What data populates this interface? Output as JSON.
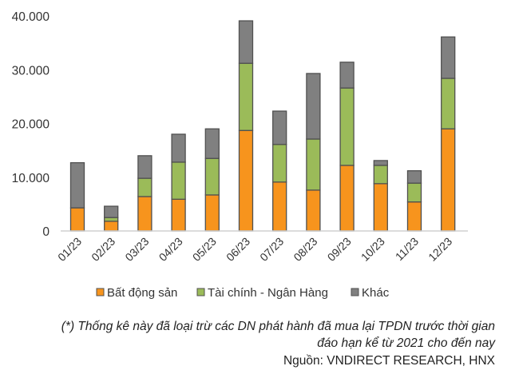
{
  "chart_data": {
    "type": "bar",
    "stacked": true,
    "title": "",
    "xlabel": "",
    "ylabel": "",
    "ylim": [
      0,
      40000
    ],
    "yticks": [
      0,
      10000,
      20000,
      30000,
      40000
    ],
    "ytick_labels": [
      "0",
      "10.000",
      "20.000",
      "30.000",
      "40.000"
    ],
    "categories": [
      "01/23",
      "02/23",
      "03/23",
      "04/23",
      "05/23",
      "06/23",
      "07/23",
      "08/23",
      "09/23",
      "10/23",
      "11/23",
      "12/23"
    ],
    "series": [
      {
        "name": "Bất động sản",
        "color": "#F7941D",
        "values": [
          4300,
          1800,
          6400,
          5900,
          6700,
          18700,
          9100,
          7600,
          12200,
          8800,
          5400,
          19000
        ]
      },
      {
        "name": "Tài chính - Ngân Hàng",
        "color": "#9BBB59",
        "values": [
          0,
          700,
          3400,
          6900,
          6800,
          12500,
          7000,
          9500,
          14400,
          3400,
          3500,
          9400
        ]
      },
      {
        "name": "Khác",
        "color": "#808080",
        "values": [
          8400,
          2100,
          4200,
          5200,
          5500,
          7900,
          6200,
          12200,
          4800,
          900,
          2300,
          7700
        ]
      }
    ],
    "legend_position": "bottom",
    "grid": false
  },
  "footnote_line1": "(*) Thống kê này đã loại trừ các DN phát hành đã mua lại TPDN trước thời gian",
  "footnote_line2": "đáo hạn kể từ 2021 cho đến nay",
  "source": "Nguồn: VNDIRECT RESEARCH, HNX"
}
